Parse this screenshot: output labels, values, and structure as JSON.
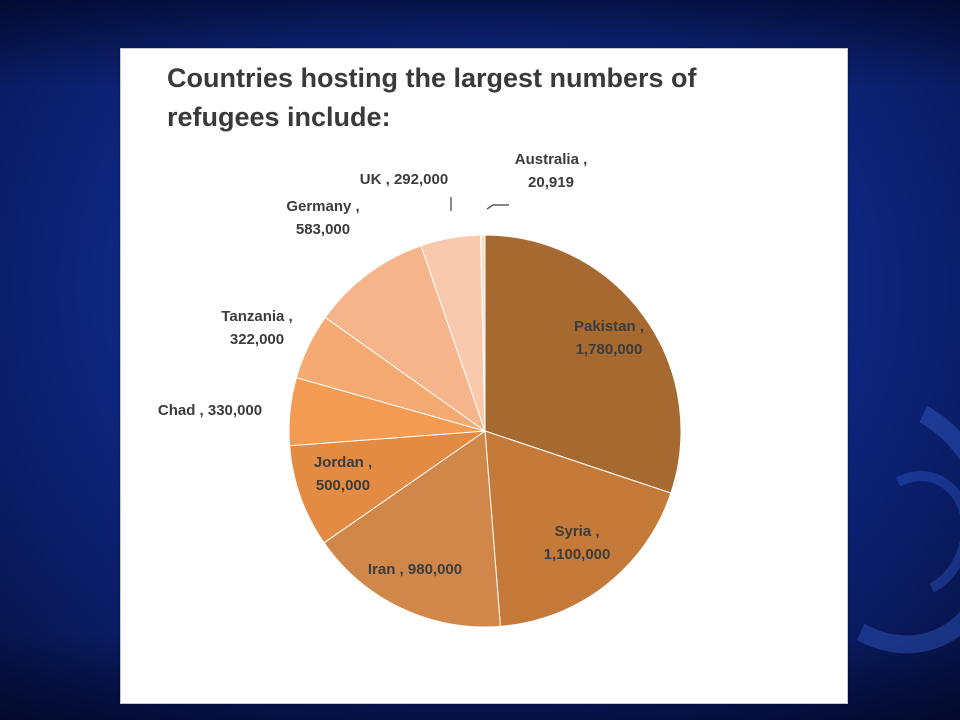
{
  "chart_data": {
    "type": "pie",
    "title": "Countries hosting the largest numbers of\nrefugees include:",
    "slices": [
      {
        "name": "Pakistan",
        "value": 1780000,
        "label_line1": "Pakistan ,",
        "label_line2": "1,780,000",
        "color": "#a6692f"
      },
      {
        "name": "Syria",
        "value": 1100000,
        "label_line1": "Syria ,",
        "label_line2": "1,100,000",
        "color": "#c57a3a"
      },
      {
        "name": "Iran",
        "value": 980000,
        "label_line1": "Iran , 980,000",
        "label_line2": "",
        "color": "#d2874a"
      },
      {
        "name": "Jordan",
        "value": 500000,
        "label_line1": "Jordan ,",
        "label_line2": "500,000",
        "color": "#e38b43"
      },
      {
        "name": "Chad",
        "value": 330000,
        "label_line1": "Chad , 330,000",
        "label_line2": "",
        "color": "#f39b52"
      },
      {
        "name": "Tanzania",
        "value": 322000,
        "label_line1": "Tanzania ,",
        "label_line2": "322,000",
        "color": "#f5aa72"
      },
      {
        "name": "Germany",
        "value": 583000,
        "label_line1": "Germany ,",
        "label_line2": "583,000",
        "color": "#f6b48a"
      },
      {
        "name": "UK",
        "value": 292000,
        "label_line1": "UK , 292,000",
        "label_line2": "",
        "color": "#f8c9ac"
      },
      {
        "name": "Australia",
        "value": 20919,
        "label_line1": "Australia ,",
        "label_line2": "20,919",
        "color": "#f9dccb"
      }
    ],
    "start_angle": "12 o'clock",
    "direction": "clockwise",
    "legend": "none",
    "labels": "outside/inside data labels"
  }
}
